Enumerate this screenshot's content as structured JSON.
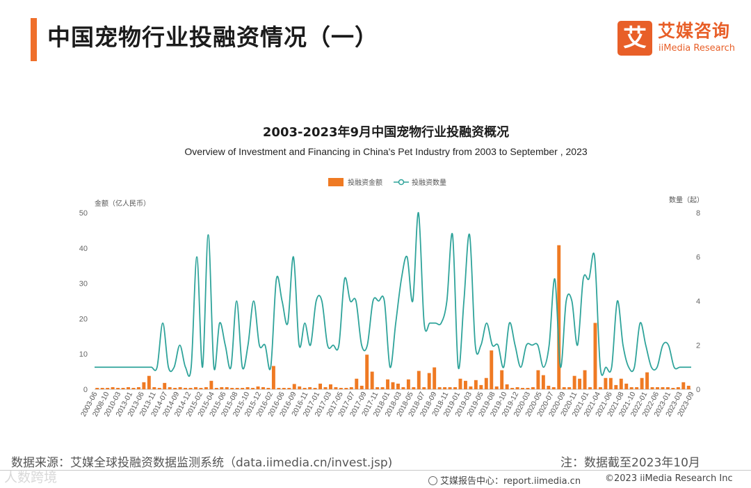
{
  "page": {
    "title": "中国宠物行业投融资情况（一）",
    "accent_color": "#ef6f2b"
  },
  "logo": {
    "glyph": "艾",
    "name_cn": "艾媒咨询",
    "name_en": "iiMedia Research"
  },
  "chart_data": {
    "type": "bar+line",
    "title": "2003-2023年9月中国宠物行业投融资概况",
    "subtitle": "Overview of Investment and Financing in China's Pet Industry from 2003 to September , 2023",
    "legend_position": "top-center",
    "grid": false,
    "y_left_label": "金额（亿人民币）",
    "y_right_label": "数量（起）",
    "y_left_ticks": [
      "0",
      "10",
      "20",
      "30",
      "40",
      "50"
    ],
    "y_right_ticks": [
      "0",
      "2",
      "4",
      "6",
      "8"
    ],
    "ylim_left": [
      0,
      50
    ],
    "ylim_right": [
      0,
      8
    ],
    "x_tick_labels": [
      "2003-06",
      "2008-10",
      "2010-03",
      "2013-01",
      "2013-06",
      "2013-11",
      "2014-07",
      "2014-09",
      "2014-12",
      "2015-02",
      "2015-04",
      "2015-06",
      "2015-08",
      "2015-10",
      "2015-12",
      "2016-02",
      "2016-06",
      "2016-09",
      "2016-11",
      "2017-01",
      "2017-03",
      "2017-05",
      "2017-07",
      "2017-09",
      "2017-11",
      "2018-01",
      "2018-03",
      "2018-05",
      "2018-07",
      "2018-09",
      "2018-11",
      "2019-01",
      "2019-03",
      "2019-05",
      "2019-08",
      "2019-10",
      "2019-12",
      "2020-03",
      "2020-05",
      "2020-07",
      "2020-09",
      "2020-11",
      "2021-01",
      "2021-04",
      "2021-06",
      "2021-08",
      "2021-10",
      "2022-01",
      "2022-06",
      "2023-01",
      "2023-03",
      "2023-09"
    ],
    "bar_color": "#ef7a23",
    "line_color": "#2ea39a",
    "series": [
      {
        "name": "投融资金额",
        "kind": "bar",
        "axis": "left",
        "values": [
          0.4,
          0.4,
          0.4,
          0.6,
          0.4,
          0.4,
          0.6,
          0.4,
          0.6,
          2,
          3.8,
          0.6,
          0.4,
          1.8,
          0.6,
          0.4,
          0.6,
          0.4,
          0.4,
          0.6,
          0.4,
          0.6,
          2.4,
          0.4,
          0.6,
          0.6,
          0.4,
          0.4,
          0.4,
          0.6,
          0.4,
          0.8,
          0.6,
          0.4,
          6.6,
          0.4,
          0.4,
          0.4,
          1.5,
          0.8,
          0.4,
          0.6,
          0.4,
          1.6,
          0.6,
          1.4,
          0.6,
          0.4,
          0.4,
          0.6,
          3,
          1,
          9.8,
          5,
          0.6,
          0.6,
          2.8,
          2,
          1.6,
          0.6,
          2.8,
          0.6,
          5.2,
          0.6,
          4.6,
          6.2,
          0.6,
          0.6,
          0.6,
          0.6,
          3,
          2.4,
          0.8,
          2.6,
          1.2,
          3.2,
          11,
          0.8,
          5.4,
          1.4,
          0.4,
          0.6,
          0.4,
          0.4,
          0.6,
          5.4,
          4,
          1,
          0.6,
          40.8,
          0.6,
          0.6,
          3.8,
          3,
          5.4,
          0.6,
          18.8,
          0.6,
          3.2,
          3.2,
          1.2,
          3,
          1.6,
          0.6,
          0.6,
          3.2,
          4.8,
          0.6,
          0.6,
          0.6,
          0.6,
          0.4,
          0.6,
          2,
          1
        ]
      },
      {
        "name": "投融资数量",
        "kind": "line",
        "axis": "right",
        "values": [
          1,
          1,
          1,
          1,
          1,
          1,
          1,
          1,
          1,
          1,
          1,
          1,
          3,
          1,
          1,
          2,
          1,
          1,
          6,
          1,
          7,
          1,
          3,
          2,
          1,
          4,
          1,
          2,
          4,
          2,
          2,
          1,
          5,
          4,
          3,
          6,
          2,
          3,
          2,
          4,
          4,
          2,
          2,
          2,
          5,
          4,
          4,
          2,
          2,
          4,
          4,
          4,
          1,
          3,
          5,
          6,
          4,
          8,
          3,
          3,
          3,
          3,
          4,
          7,
          1,
          4,
          7,
          2,
          2,
          3,
          2,
          2,
          1,
          3,
          2,
          1,
          2,
          2,
          2,
          1,
          2,
          5,
          1,
          4,
          4,
          2,
          5,
          5,
          6,
          1,
          1,
          1,
          4,
          2,
          1,
          1,
          3,
          2,
          1,
          1,
          2,
          2,
          1,
          1,
          1,
          1
        ]
      }
    ]
  },
  "footer": {
    "source": "数据来源：艾媒全球投融资数据监测系统（data.iimedia.cn/invest.jsp)",
    "note": "注：数据截至2023年10月",
    "report_center": "艾媒报告中心：report.iimedia.cn",
    "copyright": "©2023  iiMedia Research  Inc",
    "watermark": "人数跨境"
  }
}
